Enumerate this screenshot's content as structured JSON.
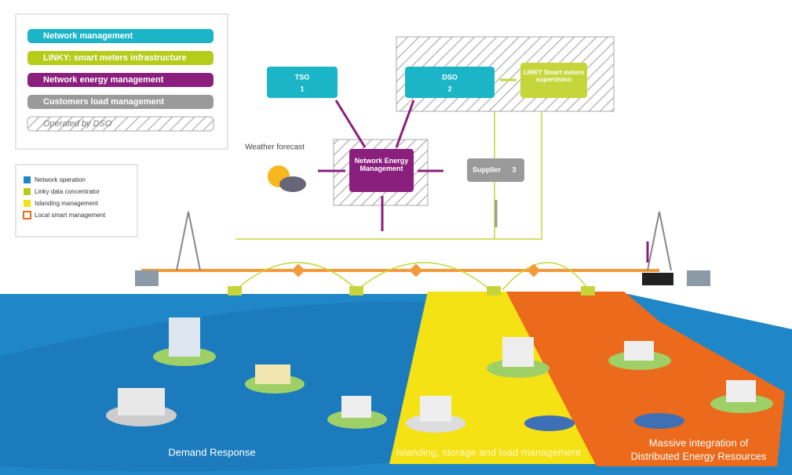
{
  "legend": {
    "items": [
      "Network management",
      "LINKY: smart meters infrastructure",
      "Network energy management",
      "Customers load management",
      "Operated by DSO"
    ]
  },
  "markers": {
    "items": [
      "Network operation",
      "Linky data concentrator",
      "Islanding management",
      "Local smart management"
    ]
  },
  "nodes": [
    {
      "label": "TSO",
      "number": "1"
    },
    {
      "label": "DSO",
      "number": "2"
    },
    {
      "label": "LINKY Smart meters supervision"
    },
    {
      "label": "Network Energy Management"
    },
    {
      "label": "Supplier",
      "number": "3"
    }
  ],
  "weather": "Weather forecast",
  "zones": {
    "demand": "Demand Response",
    "islanding": "Islanding, storage and load management",
    "massive": [
      "Massive integration of",
      "Distributed Energy Resources"
    ]
  }
}
